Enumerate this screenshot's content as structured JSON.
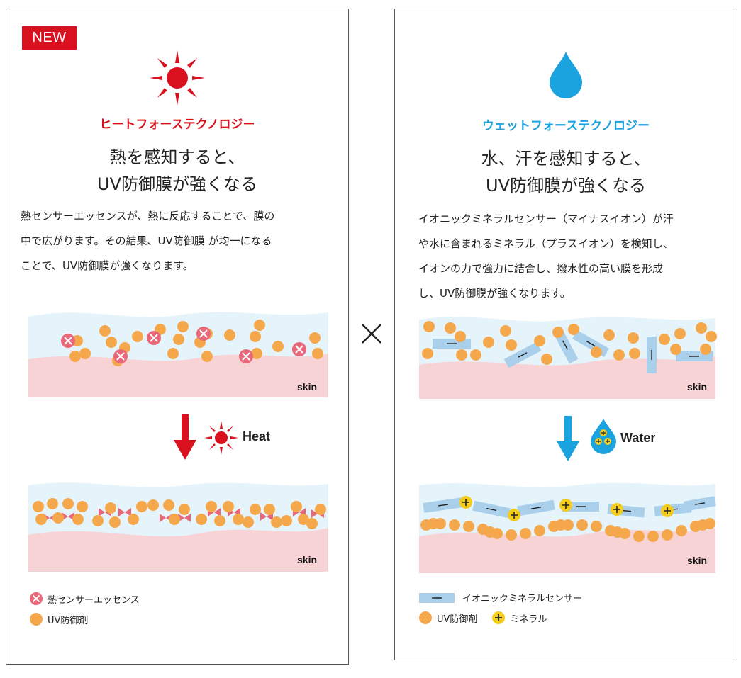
{
  "colors": {
    "red": "#d9101d",
    "blue": "#1aa3df",
    "orange": "#f5a84b",
    "pink_x": "#e8687a",
    "skin": "#f8d3d6",
    "fluid": "#e5f3fb",
    "sensor": "#a9cfea",
    "mineral": "#f3cc1c"
  },
  "cross_symbol": "×",
  "left": {
    "badge": "NEW",
    "icon": "sun-icon",
    "tech_title": "ヒートフォーステクノロジー",
    "headline": [
      "熱を感知すると、",
      "UV防御膜が強くなる"
    ],
    "body": [
      "熱センサーエッセンスが、熱に反応することで、膜の",
      "中で広がります。その結果、UV防御膜 が均一になる",
      "ことで、UV防御膜が強くなります。"
    ],
    "skin_label_top": "skin",
    "skin_label_bottom": "skin",
    "trigger_label": "Heat",
    "legend": [
      {
        "icon": "pink-x-circle-icon",
        "label": "熱センサーエッセンス"
      },
      {
        "icon": "orange-dot-icon",
        "label": "UV防御剤"
      }
    ]
  },
  "right": {
    "icon": "water-drop-icon",
    "tech_title": "ウェットフォーステクノロジー",
    "headline": [
      "水、汗を感知すると、",
      "UV防御膜が強くなる"
    ],
    "body": [
      "イオニックミネラルセンサー（マイナスイオン）が汗",
      "や水に含まれるミネラル（プラスイオン）を検知し、",
      "イオンの力で強力に結合し、撥水性の高い膜を形成",
      "し、UV防御膜が強くなります。"
    ],
    "skin_label_top": "skin",
    "skin_label_bottom": "skin",
    "trigger_label": "Water",
    "legend": [
      {
        "icon": "blue-minus-bar-icon",
        "label": "イオニックミネラルセンサー"
      },
      {
        "icon": "orange-dot-icon",
        "label": "UV防御剤"
      },
      {
        "icon": "yellow-plus-circle-icon",
        "label": "ミネラル"
      }
    ]
  }
}
